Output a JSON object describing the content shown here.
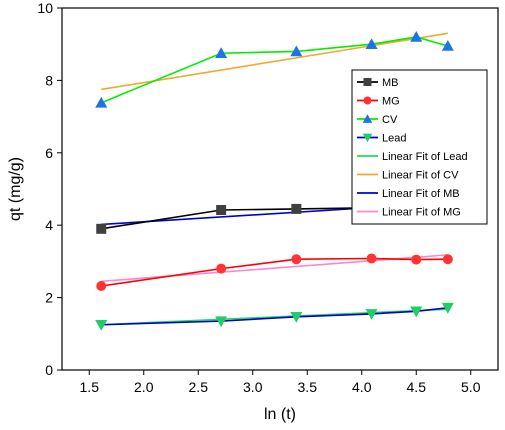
{
  "chart_data": {
    "type": "scatter",
    "xlabel": "ln (t)",
    "ylabel": "qt (mg/g)",
    "xlim": [
      1.25,
      5.25
    ],
    "ylim": [
      0,
      10
    ],
    "xticks": [
      "1.5",
      "2.0",
      "2.5",
      "3.0",
      "3.5",
      "4.0",
      "4.5",
      "5.0"
    ],
    "yticks": [
      "0",
      "2",
      "4",
      "6",
      "8",
      "10"
    ],
    "legend_position": "top-right",
    "series": [
      {
        "name": "MB",
        "kind": "markers-line",
        "marker": "square",
        "color": "#000000",
        "marker_color": "#404040",
        "x": [
          1.61,
          2.71,
          3.4,
          4.09,
          4.5,
          4.79
        ],
        "y": [
          3.9,
          4.42,
          4.45,
          4.48,
          4.55,
          4.6
        ]
      },
      {
        "name": "MG",
        "kind": "markers-line",
        "marker": "circle",
        "color": "#ff0000",
        "marker_color": "#ff3333",
        "x": [
          1.61,
          2.71,
          3.4,
          4.09,
          4.5,
          4.79
        ],
        "y": [
          2.32,
          2.8,
          3.06,
          3.08,
          3.05,
          3.06
        ]
      },
      {
        "name": "CV",
        "kind": "markers-line",
        "marker": "triangle-up",
        "color": "#00ee00",
        "marker_color": "#1e73e8",
        "x": [
          1.61,
          2.71,
          3.4,
          4.09,
          4.5,
          4.79
        ],
        "y": [
          7.38,
          8.75,
          8.8,
          9.0,
          9.2,
          8.95
        ]
      },
      {
        "name": "Lead",
        "kind": "markers-line",
        "marker": "triangle-down",
        "color": "#0000cc",
        "marker_color": "#22cc66",
        "x": [
          1.61,
          2.71,
          3.4,
          4.09,
          4.5,
          4.79
        ],
        "y": [
          1.25,
          1.35,
          1.47,
          1.55,
          1.62,
          1.72
        ]
      },
      {
        "name": "Linear Fit of Lead",
        "kind": "line",
        "color": "#22dd55",
        "x": [
          1.61,
          4.79
        ],
        "y": [
          1.25,
          1.68
        ]
      },
      {
        "name": "Linear Fit of CV",
        "kind": "line",
        "color": "#f0a830",
        "x": [
          1.61,
          4.79
        ],
        "y": [
          7.75,
          9.3
        ]
      },
      {
        "name": "Linear Fit of MB",
        "kind": "line",
        "color": "#0000cc",
        "x": [
          1.61,
          4.79
        ],
        "y": [
          4.02,
          4.62
        ]
      },
      {
        "name": "Linear Fit of MG",
        "kind": "line",
        "color": "#ff88cc",
        "x": [
          1.61,
          4.79
        ],
        "y": [
          2.45,
          3.18
        ]
      }
    ]
  }
}
